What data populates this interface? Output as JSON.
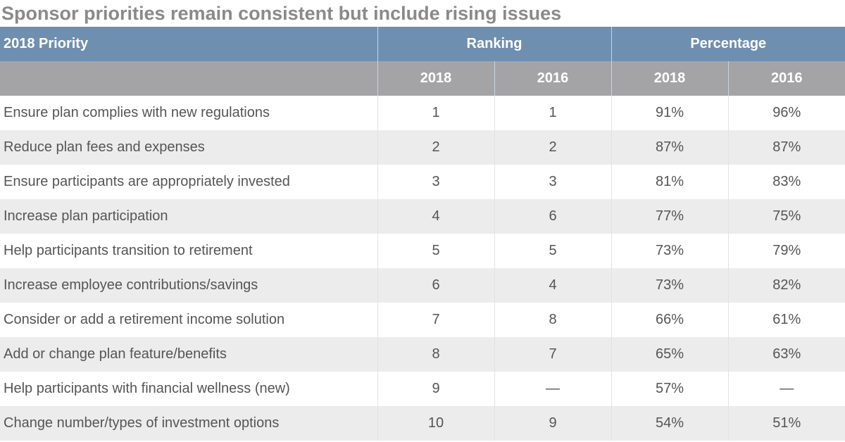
{
  "title": "Sponsor priorities remain consistent but include rising issues",
  "chart_data": {
    "type": "table",
    "header": {
      "label": "2018 Priority",
      "groups": [
        "Ranking",
        "Percentage"
      ],
      "subcolumns": [
        "2018",
        "2016",
        "2018",
        "2016"
      ]
    },
    "rows": [
      {
        "label": "Ensure plan complies with new regulations",
        "cells": [
          "1",
          "1",
          "91%",
          "96%"
        ]
      },
      {
        "label": "Reduce plan fees and expenses",
        "cells": [
          "2",
          "2",
          "87%",
          "87%"
        ]
      },
      {
        "label": "Ensure participants are appropriately invested",
        "cells": [
          "3",
          "3",
          "81%",
          "83%"
        ]
      },
      {
        "label": "Increase plan participation",
        "cells": [
          "4",
          "6",
          "77%",
          "75%"
        ]
      },
      {
        "label": "Help participants transition to retirement",
        "cells": [
          "5",
          "5",
          "73%",
          "79%"
        ]
      },
      {
        "label": "Increase employee contributions/savings",
        "cells": [
          "6",
          "4",
          "73%",
          "82%"
        ]
      },
      {
        "label": "Consider or add a retirement income solution",
        "cells": [
          "7",
          "8",
          "66%",
          "61%"
        ]
      },
      {
        "label": "Add or change plan feature/benefits",
        "cells": [
          "8",
          "7",
          "65%",
          "63%"
        ]
      },
      {
        "label": "Help participants with financial wellness (new)",
        "cells": [
          "9",
          "—",
          "57%",
          "—"
        ]
      },
      {
        "label": "Change number/types of investment options",
        "cells": [
          "10",
          "9",
          "54%",
          "51%"
        ]
      }
    ],
    "colors": {
      "header_primary": "#6f8fb0",
      "header_secondary": "#a4a4a7",
      "row_stripe": "#ececec"
    }
  }
}
